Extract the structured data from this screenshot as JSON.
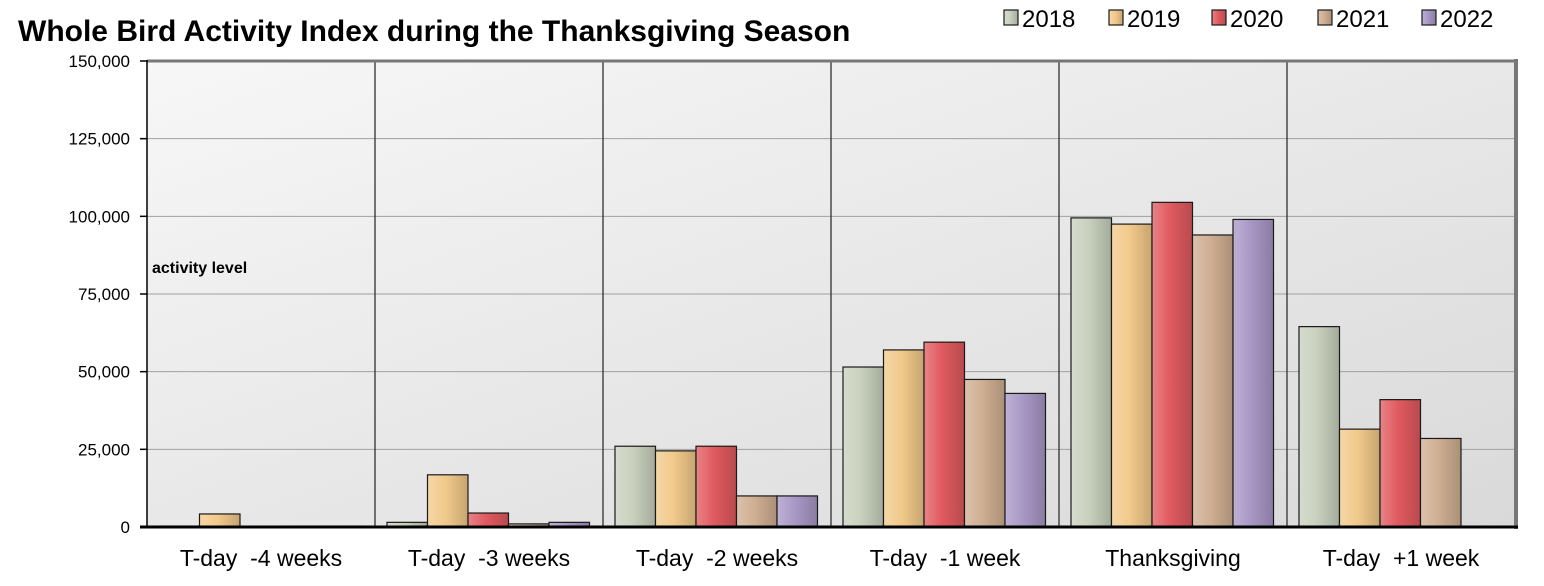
{
  "chart_data": {
    "type": "bar",
    "title": "Whole Bird Activity Index during the Thanksgiving Season",
    "xlabel": "",
    "ylabel": "activity level",
    "ylim": [
      0,
      150000
    ],
    "yticks": [
      "0",
      "25,000",
      "50,000",
      "75,000",
      "100,000",
      "125,000",
      "150,000"
    ],
    "ytick_values": [
      0,
      25000,
      50000,
      75000,
      100000,
      125000,
      150000
    ],
    "grid": true,
    "legend_position": "top-right",
    "categories": [
      "T-day  -4 weeks",
      "T-day  -3 weeks",
      "T-day  -2 weeks",
      "T-day  -1 week",
      "Thanksgiving",
      "T-day  +1 week"
    ],
    "series": [
      {
        "name": "2018",
        "color": "#c8d0bd",
        "values": [
          300,
          1500,
          26000,
          51500,
          99500,
          64500
        ]
      },
      {
        "name": "2019",
        "color": "#f2c98a",
        "values": [
          4200,
          16800,
          24500,
          57000,
          97500,
          31500
        ]
      },
      {
        "name": "2020",
        "color": "#e05a5f",
        "values": [
          0,
          4500,
          26000,
          59500,
          104500,
          41000
        ]
      },
      {
        "name": "2021",
        "color": "#cfae92",
        "values": [
          300,
          1000,
          10000,
          47500,
          94000,
          28500
        ]
      },
      {
        "name": "2022",
        "color": "#a897c5",
        "values": [
          300,
          1500,
          10000,
          43000,
          99000,
          0
        ]
      }
    ]
  }
}
